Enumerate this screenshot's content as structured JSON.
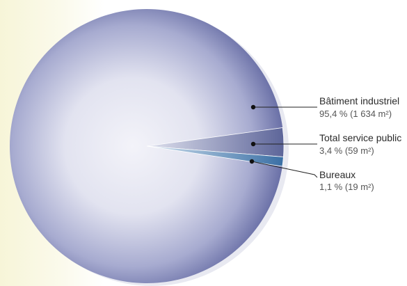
{
  "chart_data": {
    "type": "pie",
    "title": "",
    "legend": "callouts-right",
    "series": [
      {
        "name": "Bâtiment industriel",
        "value": 95.4,
        "value_label": "95,4 % (1 634 m²)",
        "area_m2": 1634,
        "color": "#c9cbe3"
      },
      {
        "name": "Total service public",
        "value": 3.4,
        "value_label": "3,4 % (59 m²)",
        "area_m2": 59,
        "color": "#6670a2"
      },
      {
        "name": "Bureaux",
        "value": 1.1,
        "value_label": "1,1 % (19 m²)",
        "area_m2": 19,
        "color": "#4a7fb0"
      }
    ]
  }
}
